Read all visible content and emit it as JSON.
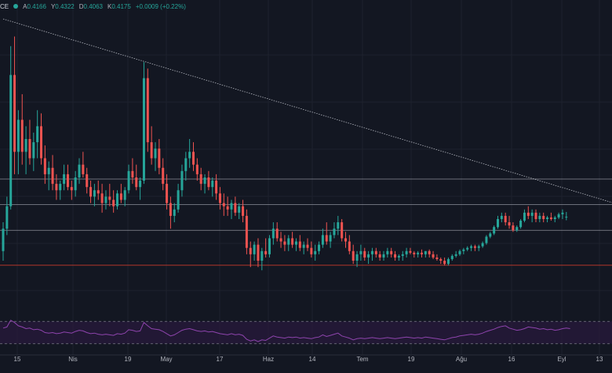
{
  "legend": {
    "symbol_fragment": "CE",
    "open_label": "A",
    "open": "0.4166",
    "high_label": "Y",
    "high": "0.4322",
    "low_label": "D",
    "low": "0.4063",
    "close_label": "K",
    "close": "0.4175",
    "change": "+0.0009 (+0.22%)"
  },
  "colors": {
    "background": "#131722",
    "up": "#26a69a",
    "down": "#ef5350",
    "grid": "#1e222d",
    "horizontal_line": "#b2b5be",
    "support_line": "#c0392b",
    "trendline": "#d1d4dc",
    "rsi_line": "#8e44ad",
    "rsi_fill": "#2a1a3d"
  },
  "chart_data": [
    {
      "type": "candlestick",
      "x_tick_labels": [
        "15",
        "Nis",
        "19",
        "May",
        "17",
        "Haz",
        "14",
        "Tem",
        "19",
        "Ağu",
        "16",
        "Eyl",
        "13"
      ],
      "y_range": [
        0.15,
        1.05
      ],
      "horizontal_levels": [
        {
          "value": 0.535,
          "style": "solid",
          "role": "level"
        },
        {
          "value": 0.455,
          "style": "solid",
          "role": "level"
        },
        {
          "value": 0.375,
          "style": "solid",
          "role": "level"
        },
        {
          "value": 0.266,
          "style": "solid",
          "role": "support"
        }
      ],
      "trendline": {
        "from": {
          "i": 0,
          "v": 1.035
        },
        "to": {
          "i": 180,
          "v": 0.39
        }
      },
      "candles_note": "approximate daily candles read from the chart",
      "candles": [
        [
          0.31,
          0.4,
          0.28,
          0.38
        ],
        [
          0.38,
          0.48,
          0.36,
          0.45
        ],
        [
          0.45,
          0.95,
          0.44,
          0.86
        ],
        [
          0.86,
          0.98,
          0.55,
          0.62
        ],
        [
          0.62,
          0.75,
          0.55,
          0.72
        ],
        [
          0.72,
          0.8,
          0.58,
          0.62
        ],
        [
          0.62,
          0.7,
          0.55,
          0.66
        ],
        [
          0.66,
          0.72,
          0.58,
          0.6
        ],
        [
          0.6,
          0.68,
          0.56,
          0.65
        ],
        [
          0.65,
          0.75,
          0.6,
          0.7
        ],
        [
          0.7,
          0.74,
          0.58,
          0.6
        ],
        [
          0.6,
          0.64,
          0.52,
          0.55
        ],
        [
          0.55,
          0.59,
          0.5,
          0.57
        ],
        [
          0.57,
          0.61,
          0.5,
          0.52
        ],
        [
          0.52,
          0.55,
          0.47,
          0.5
        ],
        [
          0.5,
          0.53,
          0.47,
          0.52
        ],
        [
          0.52,
          0.58,
          0.5,
          0.55
        ],
        [
          0.55,
          0.58,
          0.5,
          0.51
        ],
        [
          0.51,
          0.53,
          0.47,
          0.5
        ],
        [
          0.5,
          0.56,
          0.48,
          0.54
        ],
        [
          0.54,
          0.6,
          0.52,
          0.58
        ],
        [
          0.58,
          0.62,
          0.54,
          0.55
        ],
        [
          0.55,
          0.57,
          0.49,
          0.51
        ],
        [
          0.51,
          0.53,
          0.46,
          0.48
        ],
        [
          0.48,
          0.52,
          0.45,
          0.5
        ],
        [
          0.5,
          0.53,
          0.47,
          0.49
        ],
        [
          0.49,
          0.52,
          0.43,
          0.46
        ],
        [
          0.46,
          0.5,
          0.44,
          0.48
        ],
        [
          0.48,
          0.52,
          0.45,
          0.47
        ],
        [
          0.47,
          0.5,
          0.43,
          0.45
        ],
        [
          0.45,
          0.5,
          0.44,
          0.49
        ],
        [
          0.49,
          0.52,
          0.46,
          0.47
        ],
        [
          0.47,
          0.51,
          0.45,
          0.5
        ],
        [
          0.5,
          0.58,
          0.49,
          0.56
        ],
        [
          0.56,
          0.6,
          0.52,
          0.54
        ],
        [
          0.54,
          0.58,
          0.5,
          0.51
        ],
        [
          0.51,
          0.54,
          0.47,
          0.53
        ],
        [
          0.53,
          0.9,
          0.52,
          0.85
        ],
        [
          0.85,
          0.88,
          0.62,
          0.65
        ],
        [
          0.65,
          0.7,
          0.58,
          0.6
        ],
        [
          0.6,
          0.65,
          0.56,
          0.63
        ],
        [
          0.63,
          0.66,
          0.55,
          0.57
        ],
        [
          0.57,
          0.6,
          0.5,
          0.52
        ],
        [
          0.52,
          0.55,
          0.44,
          0.46
        ],
        [
          0.46,
          0.48,
          0.38,
          0.42
        ],
        [
          0.42,
          0.46,
          0.4,
          0.44
        ],
        [
          0.44,
          0.52,
          0.43,
          0.5
        ],
        [
          0.5,
          0.58,
          0.48,
          0.56
        ],
        [
          0.56,
          0.62,
          0.53,
          0.6
        ],
        [
          0.6,
          0.66,
          0.57,
          0.62
        ],
        [
          0.62,
          0.65,
          0.56,
          0.58
        ],
        [
          0.58,
          0.6,
          0.53,
          0.55
        ],
        [
          0.55,
          0.57,
          0.5,
          0.52
        ],
        [
          0.52,
          0.55,
          0.49,
          0.54
        ],
        [
          0.54,
          0.56,
          0.5,
          0.51
        ],
        [
          0.51,
          0.54,
          0.48,
          0.53
        ],
        [
          0.53,
          0.55,
          0.47,
          0.49
        ],
        [
          0.49,
          0.51,
          0.44,
          0.46
        ],
        [
          0.46,
          0.49,
          0.42,
          0.45
        ],
        [
          0.45,
          0.48,
          0.42,
          0.44
        ],
        [
          0.44,
          0.47,
          0.41,
          0.46
        ],
        [
          0.46,
          0.48,
          0.42,
          0.43
        ],
        [
          0.43,
          0.46,
          0.41,
          0.45
        ],
        [
          0.45,
          0.47,
          0.4,
          0.42
        ],
        [
          0.42,
          0.44,
          0.3,
          0.32
        ],
        [
          0.32,
          0.34,
          0.26,
          0.3
        ],
        [
          0.3,
          0.34,
          0.28,
          0.33
        ],
        [
          0.33,
          0.35,
          0.26,
          0.28
        ],
        [
          0.28,
          0.32,
          0.25,
          0.31
        ],
        [
          0.31,
          0.35,
          0.29,
          0.3
        ],
        [
          0.3,
          0.36,
          0.29,
          0.35
        ],
        [
          0.35,
          0.4,
          0.33,
          0.38
        ],
        [
          0.38,
          0.4,
          0.34,
          0.35
        ],
        [
          0.35,
          0.37,
          0.32,
          0.34
        ],
        [
          0.34,
          0.36,
          0.31,
          0.33
        ],
        [
          0.33,
          0.36,
          0.31,
          0.35
        ],
        [
          0.35,
          0.37,
          0.32,
          0.33
        ],
        [
          0.33,
          0.35,
          0.31,
          0.34
        ],
        [
          0.34,
          0.36,
          0.31,
          0.32
        ],
        [
          0.32,
          0.34,
          0.3,
          0.33
        ],
        [
          0.33,
          0.35,
          0.31,
          0.32
        ],
        [
          0.32,
          0.34,
          0.29,
          0.3
        ],
        [
          0.3,
          0.33,
          0.28,
          0.31
        ],
        [
          0.31,
          0.34,
          0.3,
          0.33
        ],
        [
          0.33,
          0.38,
          0.32,
          0.36
        ],
        [
          0.36,
          0.4,
          0.33,
          0.34
        ],
        [
          0.34,
          0.37,
          0.32,
          0.36
        ],
        [
          0.36,
          0.4,
          0.35,
          0.38
        ],
        [
          0.38,
          0.42,
          0.36,
          0.4
        ],
        [
          0.4,
          0.41,
          0.34,
          0.35
        ],
        [
          0.35,
          0.37,
          0.32,
          0.34
        ],
        [
          0.34,
          0.36,
          0.3,
          0.31
        ],
        [
          0.31,
          0.33,
          0.27,
          0.28
        ],
        [
          0.28,
          0.31,
          0.26,
          0.3
        ],
        [
          0.3,
          0.33,
          0.28,
          0.31
        ],
        [
          0.31,
          0.32,
          0.28,
          0.29
        ],
        [
          0.29,
          0.31,
          0.27,
          0.3
        ],
        [
          0.3,
          0.32,
          0.28,
          0.31
        ],
        [
          0.31,
          0.32,
          0.29,
          0.3
        ],
        [
          0.3,
          0.31,
          0.28,
          0.29
        ],
        [
          0.29,
          0.31,
          0.28,
          0.3
        ],
        [
          0.3,
          0.32,
          0.29,
          0.31
        ],
        [
          0.31,
          0.32,
          0.29,
          0.3
        ],
        [
          0.3,
          0.31,
          0.28,
          0.29
        ],
        [
          0.29,
          0.3,
          0.28,
          0.295
        ],
        [
          0.295,
          0.31,
          0.28,
          0.3
        ],
        [
          0.3,
          0.32,
          0.29,
          0.31
        ],
        [
          0.31,
          0.32,
          0.3,
          0.305
        ],
        [
          0.305,
          0.31,
          0.29,
          0.3
        ],
        [
          0.3,
          0.31,
          0.29,
          0.305
        ],
        [
          0.305,
          0.315,
          0.29,
          0.3
        ],
        [
          0.3,
          0.31,
          0.29,
          0.31
        ],
        [
          0.31,
          0.315,
          0.29,
          0.3
        ],
        [
          0.3,
          0.31,
          0.285,
          0.29
        ],
        [
          0.29,
          0.3,
          0.28,
          0.285
        ],
        [
          0.285,
          0.29,
          0.27,
          0.28
        ],
        [
          0.28,
          0.29,
          0.265,
          0.27
        ],
        [
          0.27,
          0.29,
          0.265,
          0.285
        ],
        [
          0.285,
          0.3,
          0.28,
          0.295
        ],
        [
          0.295,
          0.31,
          0.29,
          0.3
        ],
        [
          0.3,
          0.315,
          0.295,
          0.31
        ],
        [
          0.31,
          0.32,
          0.3,
          0.315
        ],
        [
          0.315,
          0.325,
          0.31,
          0.32
        ],
        [
          0.32,
          0.33,
          0.31,
          0.325
        ],
        [
          0.325,
          0.33,
          0.31,
          0.32
        ],
        [
          0.32,
          0.33,
          0.31,
          0.325
        ],
        [
          0.325,
          0.34,
          0.32,
          0.335
        ],
        [
          0.335,
          0.36,
          0.33,
          0.355
        ],
        [
          0.355,
          0.37,
          0.35,
          0.365
        ],
        [
          0.365,
          0.39,
          0.36,
          0.385
        ],
        [
          0.385,
          0.42,
          0.38,
          0.41
        ],
        [
          0.41,
          0.43,
          0.4,
          0.42
        ],
        [
          0.42,
          0.43,
          0.39,
          0.4
        ],
        [
          0.4,
          0.42,
          0.38,
          0.39
        ],
        [
          0.39,
          0.4,
          0.37,
          0.375
        ],
        [
          0.375,
          0.39,
          0.37,
          0.385
        ],
        [
          0.385,
          0.41,
          0.38,
          0.405
        ],
        [
          0.405,
          0.44,
          0.4,
          0.43
        ],
        [
          0.43,
          0.45,
          0.41,
          0.42
        ],
        [
          0.42,
          0.44,
          0.4,
          0.43
        ],
        [
          0.43,
          0.44,
          0.4,
          0.41
        ],
        [
          0.41,
          0.43,
          0.4,
          0.42
        ],
        [
          0.42,
          0.43,
          0.4,
          0.41
        ],
        [
          0.41,
          0.42,
          0.4,
          0.415
        ],
        [
          0.415,
          0.43,
          0.405,
          0.41
        ],
        [
          0.41,
          0.42,
          0.4,
          0.415
        ],
        [
          0.415,
          0.43,
          0.41,
          0.425
        ],
        [
          0.425,
          0.44,
          0.41,
          0.43
        ],
        [
          0.4166,
          0.4322,
          0.4063,
          0.4175
        ]
      ],
      "rsi": {
        "upper": 70,
        "lower": 30,
        "values": [
          58,
          60,
          72,
          68,
          62,
          60,
          57,
          58,
          55,
          56,
          54,
          50,
          49,
          50,
          48,
          49,
          51,
          50,
          49,
          52,
          54,
          53,
          50,
          48,
          49,
          47,
          46,
          47,
          46,
          45,
          48,
          47,
          49,
          55,
          54,
          52,
          53,
          68,
          62,
          57,
          56,
          55,
          52,
          48,
          44,
          46,
          50,
          54,
          56,
          57,
          55,
          53,
          52,
          53,
          51,
          52,
          50,
          48,
          47,
          46,
          48,
          46,
          47,
          45,
          38,
          35,
          37,
          34,
          37,
          36,
          40,
          44,
          42,
          41,
          40,
          42,
          41,
          42,
          40,
          41,
          40,
          39,
          41,
          42,
          46,
          43,
          45,
          47,
          49,
          44,
          42,
          40,
          37,
          39,
          40,
          39,
          40,
          41,
          40,
          39,
          40,
          41,
          40,
          39,
          40,
          41,
          42,
          41,
          40,
          41,
          40,
          42,
          41,
          40,
          39,
          38,
          37,
          39,
          41,
          42,
          44,
          45,
          46,
          47,
          46,
          47,
          49,
          52,
          54,
          56,
          59,
          61,
          62,
          58,
          56,
          54,
          55,
          57,
          60,
          59,
          58,
          56,
          57,
          55,
          56,
          54,
          55,
          57,
          58,
          57
        ]
      }
    }
  ]
}
